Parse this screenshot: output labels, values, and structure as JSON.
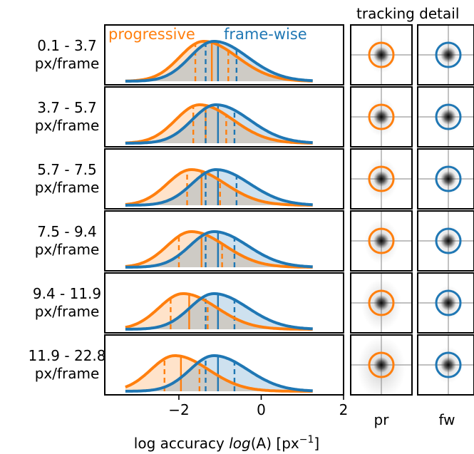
{
  "colors": {
    "progressive": "#ff7f0e",
    "framewise": "#1f77b4",
    "axis": "#000000",
    "spot": "#1a1a1a",
    "crosshair": "#9a9a9a"
  },
  "legend": {
    "progressive": "progressive",
    "framewise": "frame-wise"
  },
  "inset_header": "tracking detail",
  "inset_columns": [
    "pr",
    "fw"
  ],
  "chart_data": {
    "type": "area",
    "description_axis": {
      "xlabel": "log accuracy log(A) [px⁻¹]",
      "xlabel_prefix": "log accuracy ",
      "xlabel_italic": "log",
      "xlabel_paren": "(A)",
      "xlabel_unit_open": " [px",
      "xlabel_unit_sup": "−1",
      "xlabel_unit_close": "]",
      "xlim": [
        -3.8,
        2.0
      ],
      "xticks": [
        -2,
        0,
        2
      ],
      "xtick_labels": [
        "−2",
        "0",
        "2"
      ]
    },
    "speed_bins": [
      "0.1 - 3.7",
      "3.7 - 5.7",
      "5.7 - 7.5",
      "7.5 - 9.4",
      "9.4 - 11.9",
      "11.9 - 22.8"
    ],
    "row_unit": "px/frame",
    "series": [
      {
        "name": "progressive",
        "peak": [
          -1.4,
          -1.5,
          -1.7,
          -1.7,
          -1.9,
          -2.1
        ],
        "median": [
          -1.2,
          -1.35,
          -1.45,
          -1.45,
          -1.75,
          -1.95
        ],
        "q25": [
          -1.6,
          -1.65,
          -1.8,
          -2.0,
          -2.2,
          -2.35
        ],
        "q75": [
          -0.8,
          -0.85,
          -1.0,
          -0.95,
          -1.3,
          -1.5
        ]
      },
      {
        "name": "frame-wise",
        "peak": [
          -1.15,
          -1.1,
          -1.1,
          -1.15,
          -1.15,
          -1.15
        ],
        "median": [
          -1.05,
          -1.05,
          -1.05,
          -1.05,
          -1.05,
          -1.05
        ],
        "q25": [
          -1.35,
          -1.35,
          -1.35,
          -1.35,
          -1.35,
          -1.35
        ],
        "q75": [
          -0.6,
          -0.65,
          -0.6,
          -0.65,
          -0.65,
          -0.65
        ]
      }
    ]
  }
}
